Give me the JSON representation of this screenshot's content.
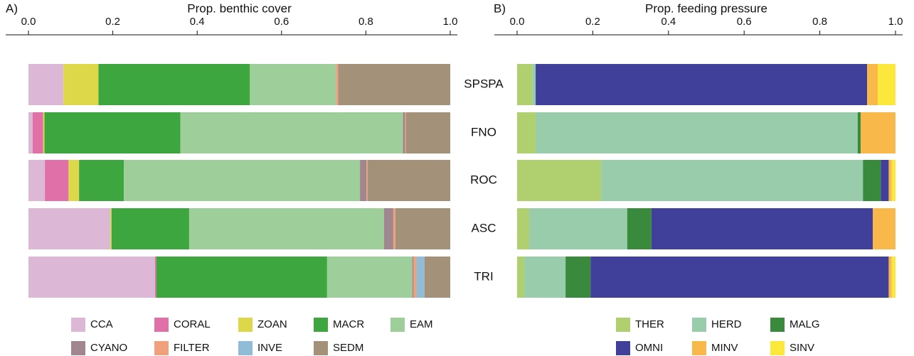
{
  "chart_data": [
    {
      "type": "stacked-barh",
      "panel_label": "A)",
      "xlabel": "Prop. benthic cover",
      "categories": [
        "SPSPA",
        "FNO",
        "ROC",
        "ASC",
        "TRI"
      ],
      "xlim": [
        0,
        1
      ],
      "xticks": [
        {
          "value": 0,
          "label": "0.0"
        },
        0.2,
        0.4,
        0.6,
        0.8,
        {
          "value": 1,
          "label": "1.0"
        }
      ],
      "series": [
        {
          "name": "CCA",
          "color": "#dcb8d6",
          "values": [
            0.083,
            0.01,
            0.039,
            0.194,
            0.3
          ]
        },
        {
          "name": "CORAL",
          "color": "#e070a8",
          "values": [
            0,
            0.025,
            0.056,
            0,
            0.003
          ]
        },
        {
          "name": "ZOAN",
          "color": "#dcd84a",
          "values": [
            0.083,
            0.003,
            0.025,
            0.003,
            0
          ]
        },
        {
          "name": "MACR",
          "color": "#3ea63e",
          "values": [
            0.359,
            0.322,
            0.106,
            0.184,
            0.405
          ]
        },
        {
          "name": "EAM",
          "color": "#9ecf9a",
          "values": [
            0.204,
            0.528,
            0.56,
            0.462,
            0.202
          ]
        },
        {
          "name": "CYANO",
          "color": "#a0868e",
          "values": [
            0,
            0.005,
            0.015,
            0.022,
            0.003
          ]
        },
        {
          "name": "FILTER",
          "color": "#f0a07a",
          "values": [
            0.005,
            0.002,
            0.003,
            0.005,
            0.007
          ]
        },
        {
          "name": "INVE",
          "color": "#90bcd8",
          "values": [
            0,
            0,
            0,
            0,
            0.019
          ]
        },
        {
          "name": "SEDM",
          "color": "#a3917a",
          "values": [
            0.266,
            0.105,
            0.196,
            0.13,
            0.061
          ]
        }
      ]
    },
    {
      "type": "stacked-barh",
      "panel_label": "B)",
      "xlabel": "Prop. feeding pressure",
      "xlim": [
        0,
        1
      ],
      "xticks": [
        {
          "value": 0,
          "label": "0.0"
        },
        0.2,
        0.4,
        0.6,
        0.8,
        {
          "value": 1,
          "label": "1.0"
        }
      ],
      "series": [
        {
          "name": "THER",
          "color": "#b0d070",
          "values": [
            0.04,
            0.049,
            0.222,
            0.032,
            0.019
          ]
        },
        {
          "name": "HERD",
          "color": "#98ccaa",
          "values": [
            0.009,
            0.851,
            0.692,
            0.259,
            0.109
          ]
        },
        {
          "name": "MALG",
          "color": "#3a8a3e",
          "values": [
            0,
            0.008,
            0.047,
            0.064,
            0.066
          ]
        },
        {
          "name": "OMNI",
          "color": "#40409a",
          "values": [
            0.876,
            0,
            0.021,
            0.585,
            0.788
          ]
        },
        {
          "name": "MINV",
          "color": "#f8b84a",
          "values": [
            0.028,
            0.092,
            0.008,
            0.06,
            0.008
          ]
        },
        {
          "name": "SINV",
          "color": "#fce83a",
          "values": [
            0.047,
            0,
            0.01,
            0,
            0.01
          ]
        }
      ]
    }
  ]
}
